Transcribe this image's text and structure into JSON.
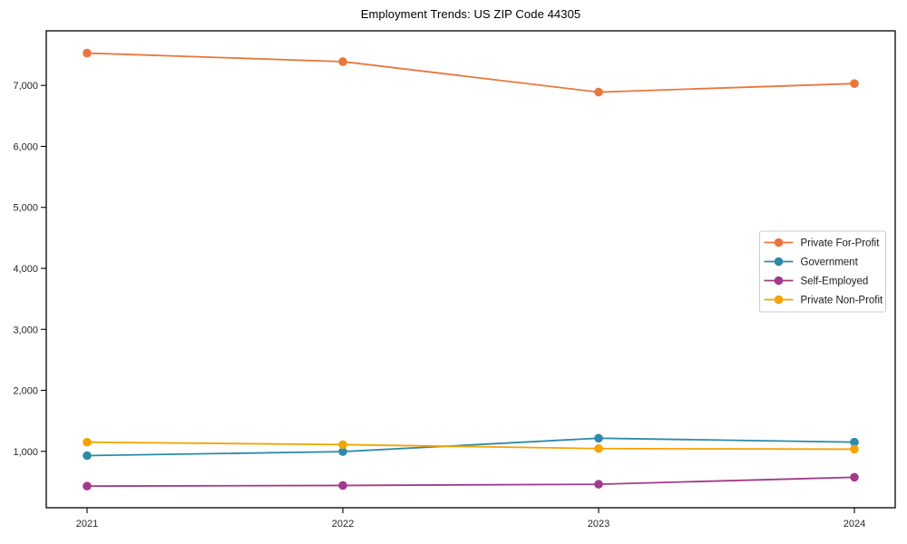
{
  "window": {
    "background_color": "#ffffff",
    "axis_color": "#000000"
  },
  "chart_data": {
    "type": "line",
    "title": "Employment Trends: US ZIP Code 44305",
    "xlabel": "",
    "ylabel": "",
    "categories": [
      "2021",
      "2022",
      "2023",
      "2024"
    ],
    "series": [
      {
        "name": "Private For-Profit",
        "color": "#e8773c",
        "values": [
          7530,
          7390,
          6890,
          7030
        ]
      },
      {
        "name": "Government",
        "color": "#2e8ba8",
        "values": [
          930,
          995,
          1215,
          1150
        ]
      },
      {
        "name": "Self-Employed",
        "color": "#a23a8b",
        "values": [
          430,
          440,
          460,
          575
        ]
      },
      {
        "name": "Private Non-Profit",
        "color": "#f5a302",
        "values": [
          1150,
          1110,
          1045,
          1035
        ]
      }
    ],
    "ylim": [
      75,
      7895
    ],
    "y_ticks": [
      {
        "value": 1000,
        "label": "1,000"
      },
      {
        "value": 2000,
        "label": "2,000"
      },
      {
        "value": 3000,
        "label": "3,000"
      },
      {
        "value": 4000,
        "label": "4,000"
      },
      {
        "value": 5000,
        "label": "5,000"
      },
      {
        "value": 6000,
        "label": "6,000"
      },
      {
        "value": 7000,
        "label": "7,000"
      }
    ],
    "grid": false,
    "legend": {
      "position": "right-middle",
      "background": "#ffffff",
      "background_opacity": 0.8,
      "border_color": "#cccccc"
    }
  }
}
